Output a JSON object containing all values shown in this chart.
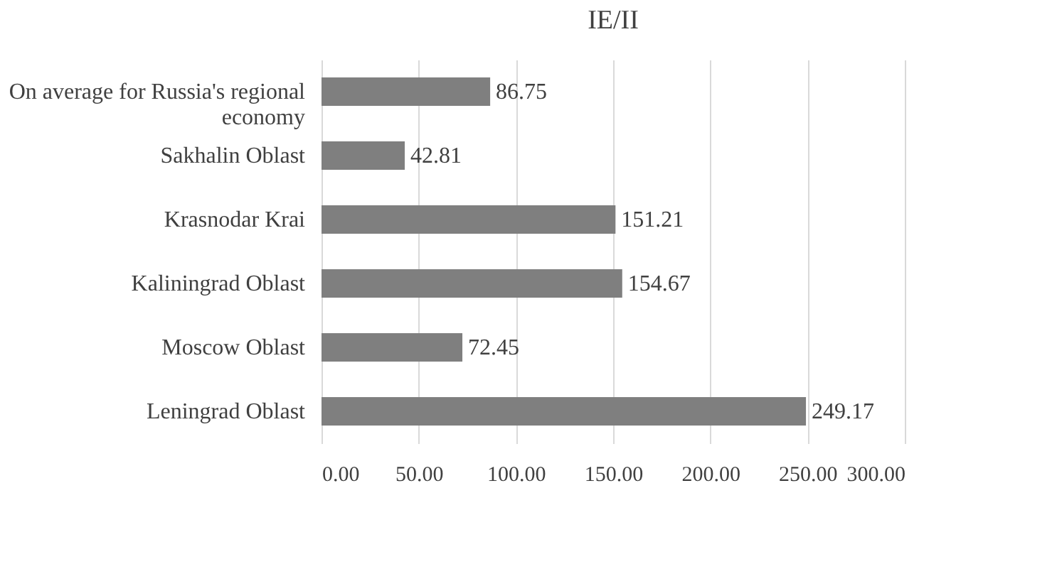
{
  "chart_data": {
    "type": "bar",
    "title": "IE/II",
    "orientation": "horizontal",
    "categories": [
      "On average for Russia's regional economy",
      "Sakhalin Oblast",
      "Krasnodar Krai",
      "Kaliningrad Oblast",
      "Moscow Oblast",
      "Leningrad Oblast"
    ],
    "values": [
      86.75,
      42.81,
      151.21,
      154.67,
      72.45,
      249.17
    ],
    "color": "#7f7f7f",
    "xlim": [
      0,
      300
    ],
    "xticks": [
      {
        "value": 0,
        "label": "0.00"
      },
      {
        "value": 50,
        "label": "50.00"
      },
      {
        "value": 100,
        "label": "100.00"
      },
      {
        "value": 150,
        "label": "150.00"
      },
      {
        "value": 200,
        "label": "200.00"
      },
      {
        "value": 250,
        "label": "250.00"
      },
      {
        "value": 300,
        "label": "300.00"
      }
    ],
    "grid": "x",
    "data_labels": true
  }
}
